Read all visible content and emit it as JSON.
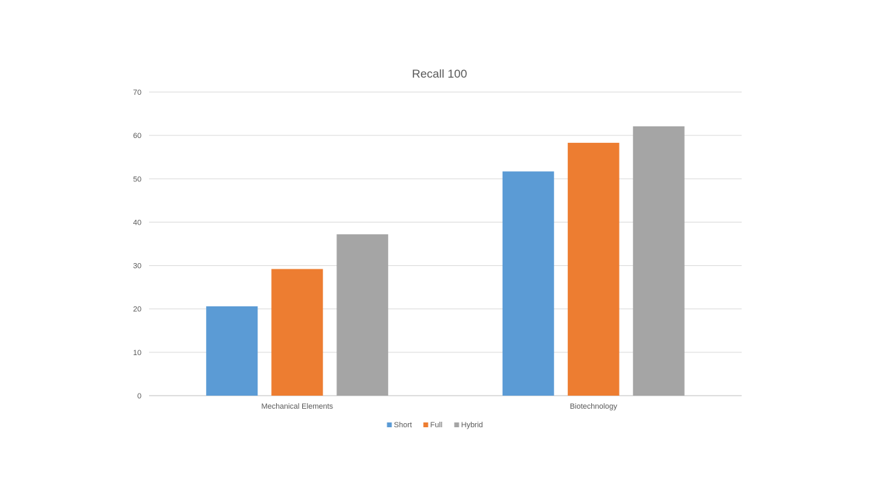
{
  "chart_data": {
    "type": "bar",
    "title": "Recall 100",
    "categories": [
      "Mechanical Elements",
      "Biotechnology"
    ],
    "series": [
      {
        "name": "Short",
        "values": [
          20.6,
          51.7
        ]
      },
      {
        "name": "Full",
        "values": [
          29.2,
          58.3
        ]
      },
      {
        "name": "Hybrid",
        "values": [
          37.2,
          62.1
        ]
      }
    ],
    "yticks": [
      0,
      10,
      20,
      30,
      40,
      50,
      60,
      70
    ],
    "ylim": [
      0,
      70
    ],
    "grid": true,
    "legend_position": "bottom",
    "colors": [
      "#5b9bd5",
      "#ed7d31",
      "#a5a5a5"
    ]
  }
}
